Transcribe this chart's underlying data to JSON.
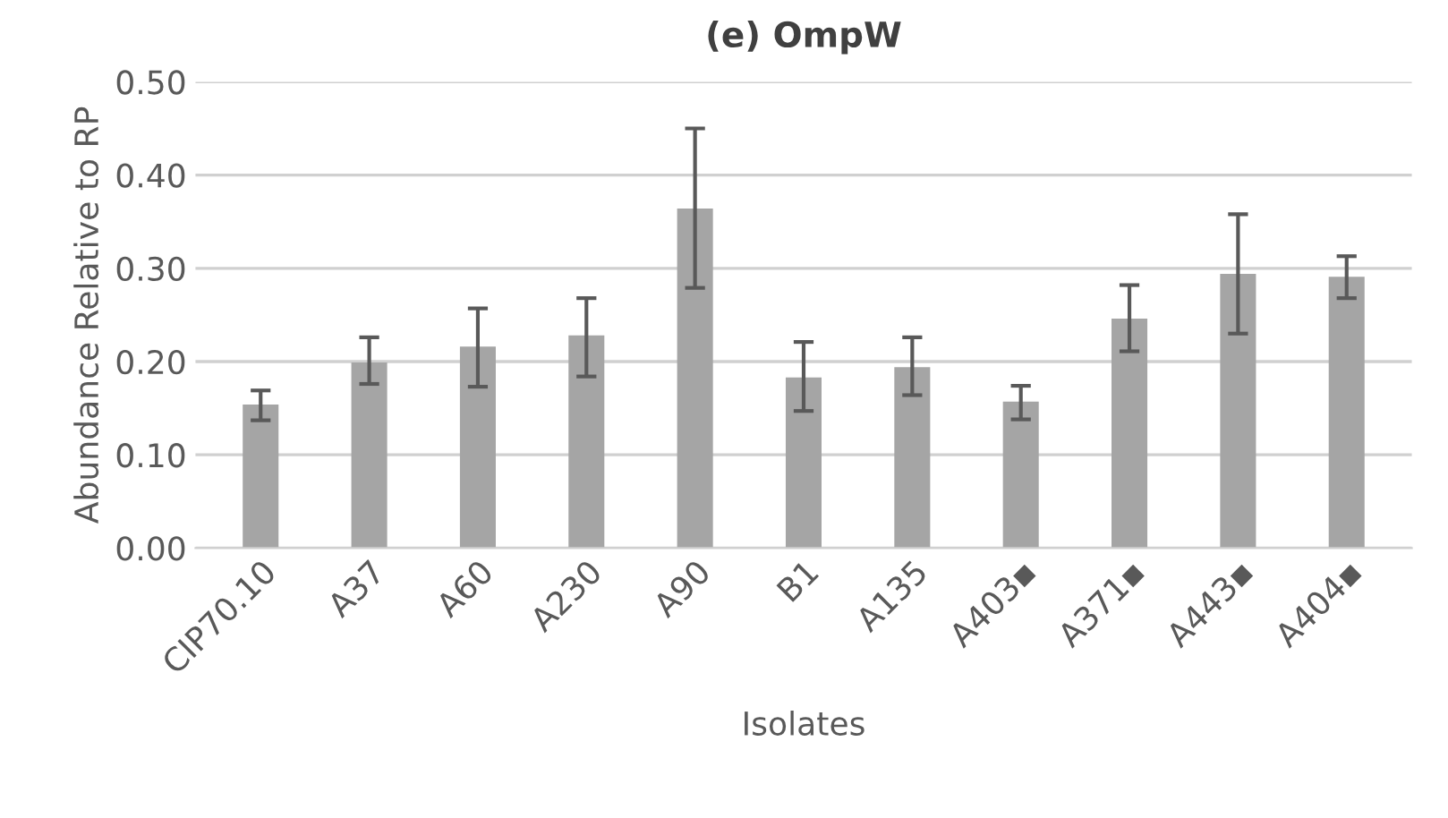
{
  "chart_data": {
    "type": "bar",
    "title": "(e) OmpW",
    "xlabel": "Isolates",
    "ylabel": "Abundance Relative to RP",
    "categories": [
      "CIP70.10",
      "A37",
      "A60",
      "A230",
      "A90",
      "B1",
      "A135",
      "A403▪",
      "A371▪",
      "A443▪",
      "A404▪"
    ],
    "values": [
      0.154,
      0.199,
      0.216,
      0.228,
      0.364,
      0.183,
      0.194,
      0.157,
      0.246,
      0.294,
      0.291
    ],
    "errors": [
      [
        0.137,
        0.169
      ],
      [
        0.176,
        0.226
      ],
      [
        0.173,
        0.257
      ],
      [
        0.184,
        0.268
      ],
      [
        0.279,
        0.45
      ],
      [
        0.147,
        0.221
      ],
      [
        0.164,
        0.226
      ],
      [
        0.138,
        0.174
      ],
      [
        0.211,
        0.282
      ],
      [
        0.23,
        0.358
      ],
      [
        0.268,
        0.313
      ]
    ],
    "color": "#a5a5a5",
    "ylim": [
      0,
      0.5
    ],
    "yticks": [
      {
        "value": 0,
        "label": "0.00"
      },
      {
        "value": 0.1,
        "label": "0.10"
      },
      {
        "value": 0.2,
        "label": "0.20"
      },
      {
        "value": 0.3,
        "label": "0.30"
      },
      {
        "value": 0.4,
        "label": "0.40"
      },
      {
        "value": 0.5,
        "label": "0.50"
      }
    ],
    "grid": "y"
  }
}
